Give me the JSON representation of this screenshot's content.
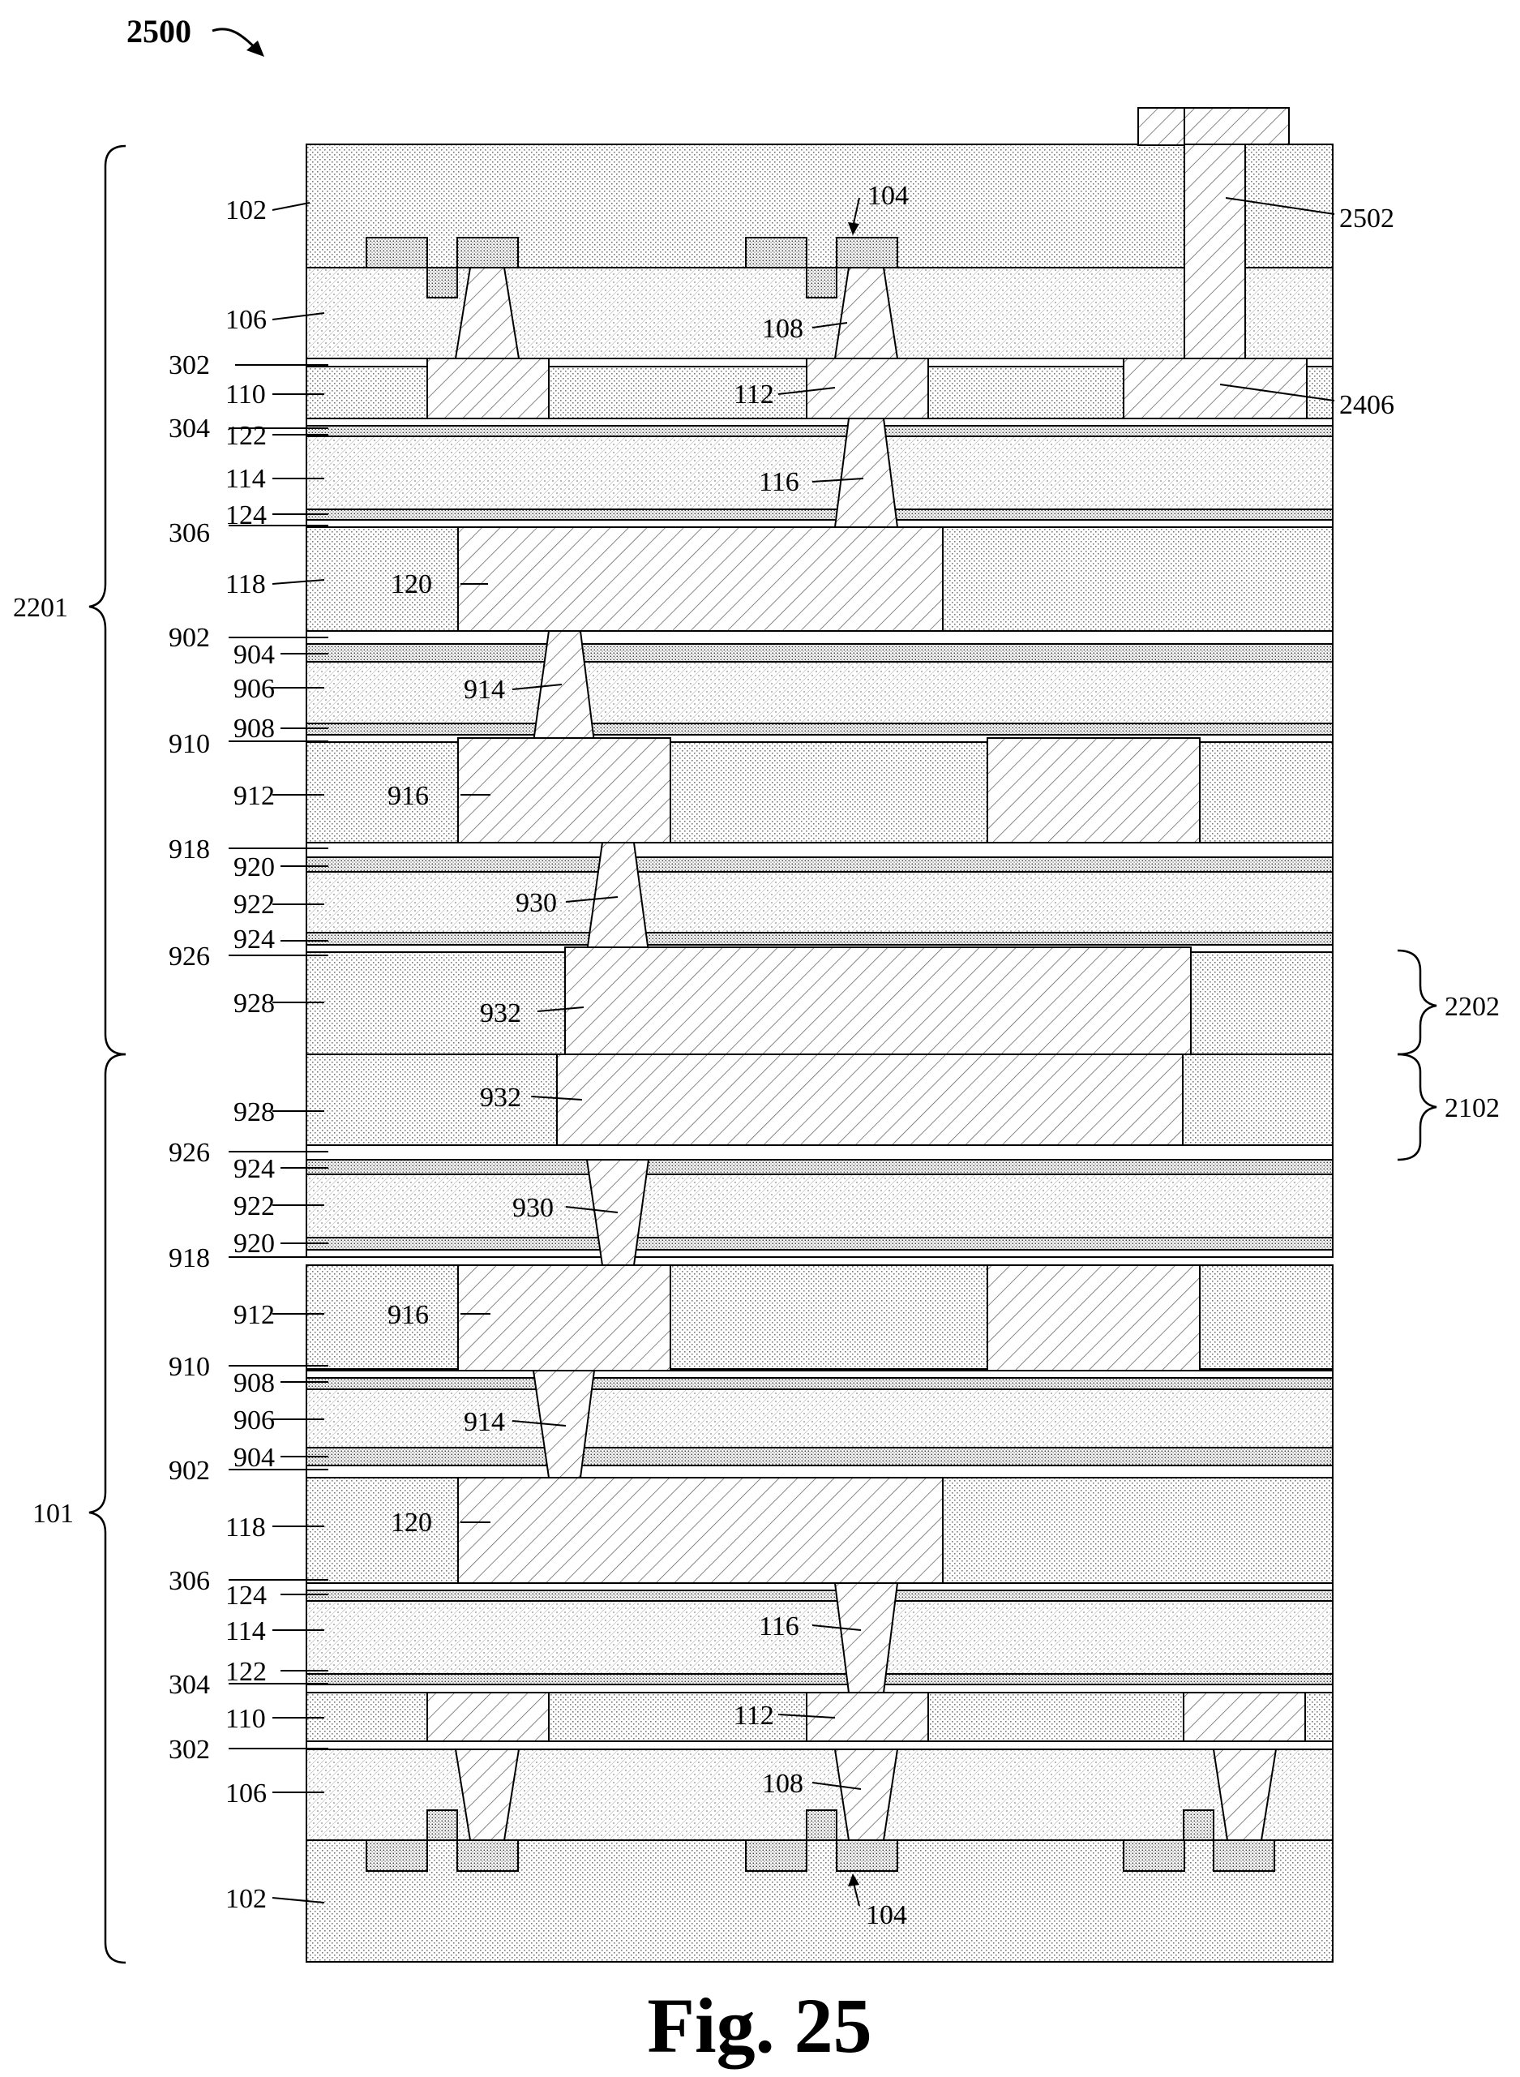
{
  "figure": {
    "ref_number": "2500",
    "caption": "Fig. 25"
  },
  "brackets": {
    "upper_die": "2201",
    "lower_die": "101",
    "upper_bond_layer": "2202",
    "lower_bond_layer": "2102"
  },
  "upper_stack_labels": {
    "substrate": "102",
    "device_features": "104",
    "layer_106": "106",
    "contact_108": "108",
    "etch_stop_302": "302",
    "layer_110": "110",
    "metal_112": "112",
    "etch_stop_304": "304",
    "layer_122": "122",
    "layer_114": "114",
    "via_116": "116",
    "layer_124": "124",
    "etch_stop_306": "306",
    "layer_118": "118",
    "metal_120": "120",
    "layer_902": "902",
    "layer_904": "904",
    "layer_906": "906",
    "via_914": "914",
    "layer_908": "908",
    "layer_910": "910",
    "layer_912": "912",
    "metal_916": "916",
    "layer_918": "918",
    "layer_920": "920",
    "layer_922": "922",
    "via_930": "930",
    "layer_924": "924",
    "layer_926": "926",
    "bond_dielectric_928": "928",
    "bond_pad_932": "932",
    "through_via_2502": "2502",
    "landing_pad_2406": "2406"
  },
  "lower_stack_labels": {
    "bond_dielectric_928": "928",
    "bond_pad_932": "932",
    "layer_926": "926",
    "layer_924": "924",
    "layer_922": "922",
    "via_930": "930",
    "layer_920": "920",
    "layer_918": "918",
    "layer_912": "912",
    "metal_916": "916",
    "layer_910": "910",
    "layer_908": "908",
    "layer_906": "906",
    "via_914": "914",
    "layer_904": "904",
    "layer_902": "902",
    "layer_118": "118",
    "metal_120": "120",
    "etch_stop_306": "306",
    "layer_124": "124",
    "layer_114": "114",
    "via_116": "116",
    "layer_122": "122",
    "etch_stop_304": "304",
    "layer_110": "110",
    "metal_112": "112",
    "etch_stop_302": "302",
    "layer_106": "106",
    "contact_108": "108",
    "substrate": "102",
    "device_features": "104"
  }
}
